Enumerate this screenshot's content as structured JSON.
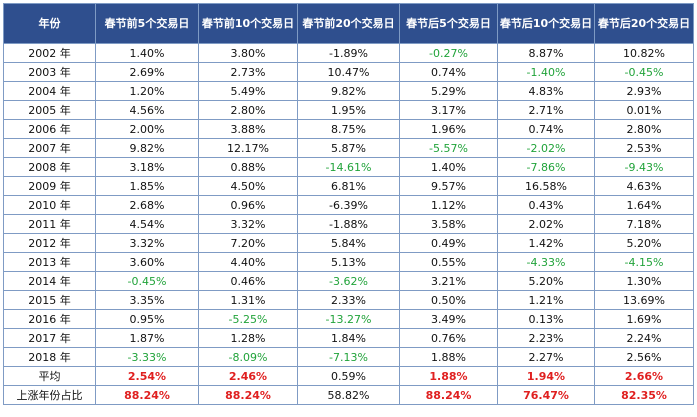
{
  "headers": [
    "年份",
    "春节前5个交易日",
    "春节前10个交易日",
    "春节前20个交易日",
    "春节后5个交易日",
    "春节后10个交易日",
    "春节后20个交易日"
  ],
  "rows": [
    {
      "year": "2002 年",
      "values": [
        "1.40%",
        "3.80%",
        "-1.89%",
        "-0.27%",
        "8.87%",
        "10.82%"
      ],
      "green": [
        false,
        false,
        false,
        true,
        false,
        false
      ]
    },
    {
      "year": "2003 年",
      "values": [
        "2.69%",
        "2.73%",
        "10.47%",
        "0.74%",
        "-1.40%",
        "-0.45%"
      ],
      "green": [
        false,
        false,
        false,
        false,
        true,
        true
      ]
    },
    {
      "year": "2004 年",
      "values": [
        "1.20%",
        "5.49%",
        "9.82%",
        "5.29%",
        "4.83%",
        "2.93%"
      ],
      "green": [
        false,
        false,
        false,
        false,
        false,
        false
      ]
    },
    {
      "year": "2005 年",
      "values": [
        "4.56%",
        "2.80%",
        "1.95%",
        "3.17%",
        "2.71%",
        "0.01%"
      ],
      "green": [
        false,
        false,
        false,
        false,
        false,
        false
      ]
    },
    {
      "year": "2006 年",
      "values": [
        "2.00%",
        "3.88%",
        "8.75%",
        "1.96%",
        "0.74%",
        "2.80%"
      ],
      "green": [
        false,
        false,
        false,
        false,
        false,
        false
      ]
    },
    {
      "year": "2007 年",
      "values": [
        "9.82%",
        "12.17%",
        "5.87%",
        "-5.57%",
        "-2.02%",
        "2.53%"
      ],
      "green": [
        false,
        false,
        false,
        true,
        true,
        false
      ]
    },
    {
      "year": "2008 年",
      "values": [
        "3.18%",
        "0.88%",
        "-14.61%",
        "1.40%",
        "-7.86%",
        "-9.43%"
      ],
      "green": [
        false,
        false,
        true,
        false,
        true,
        true
      ]
    },
    {
      "year": "2009 年",
      "values": [
        "1.85%",
        "4.50%",
        "6.81%",
        "9.57%",
        "16.58%",
        "4.63%"
      ],
      "green": [
        false,
        false,
        false,
        false,
        false,
        false
      ]
    },
    {
      "year": "2010 年",
      "values": [
        "2.68%",
        "0.96%",
        "-6.39%",
        "1.12%",
        "0.43%",
        "1.64%"
      ],
      "green": [
        false,
        false,
        false,
        false,
        false,
        false
      ]
    },
    {
      "year": "2011 年",
      "values": [
        "4.54%",
        "3.32%",
        "-1.88%",
        "3.58%",
        "2.02%",
        "7.18%"
      ],
      "green": [
        false,
        false,
        false,
        false,
        false,
        false
      ]
    },
    {
      "year": "2012 年",
      "values": [
        "3.32%",
        "7.20%",
        "5.84%",
        "0.49%",
        "1.42%",
        "5.20%"
      ],
      "green": [
        false,
        false,
        false,
        false,
        false,
        false
      ]
    },
    {
      "year": "2013 年",
      "values": [
        "3.60%",
        "4.40%",
        "5.13%",
        "0.55%",
        "-4.33%",
        "-4.15%"
      ],
      "green": [
        false,
        false,
        false,
        false,
        true,
        true
      ]
    },
    {
      "year": "2014 年",
      "values": [
        "-0.45%",
        "0.46%",
        "-3.62%",
        "3.21%",
        "5.20%",
        "1.30%"
      ],
      "green": [
        true,
        false,
        true,
        false,
        false,
        false
      ]
    },
    {
      "year": "2015 年",
      "values": [
        "3.35%",
        "1.31%",
        "2.33%",
        "0.50%",
        "1.21%",
        "13.69%"
      ],
      "green": [
        false,
        false,
        false,
        false,
        false,
        false
      ]
    },
    {
      "year": "2016 年",
      "values": [
        "0.95%",
        "-5.25%",
        "-13.27%",
        "3.49%",
        "0.13%",
        "1.69%"
      ],
      "green": [
        false,
        true,
        true,
        false,
        false,
        false
      ]
    },
    {
      "year": "2017 年",
      "values": [
        "1.87%",
        "1.28%",
        "1.84%",
        "0.76%",
        "2.23%",
        "2.24%"
      ],
      "green": [
        false,
        false,
        false,
        false,
        false,
        false
      ]
    },
    {
      "year": "2018 年",
      "values": [
        "-3.33%",
        "-8.09%",
        "-7.13%",
        "1.88%",
        "2.27%",
        "2.56%"
      ],
      "green": [
        true,
        true,
        true,
        false,
        false,
        false
      ]
    }
  ],
  "summary": [
    {
      "label": "平均",
      "values": [
        "2.54%",
        "2.46%",
        "0.59%",
        "1.88%",
        "1.94%",
        "2.66%"
      ],
      "red": [
        true,
        true,
        false,
        true,
        true,
        true
      ]
    },
    {
      "label": "上涨年份占比",
      "values": [
        "88.24%",
        "88.24%",
        "58.82%",
        "88.24%",
        "76.47%",
        "82.35%"
      ],
      "red": [
        true,
        true,
        false,
        true,
        true,
        true
      ]
    }
  ],
  "colors": {
    "header_bg": "#2f4f8e",
    "header_text": "#ffffff",
    "negative": "#21a33a",
    "highlight": "#e02020",
    "border": "#7f9bc4"
  }
}
